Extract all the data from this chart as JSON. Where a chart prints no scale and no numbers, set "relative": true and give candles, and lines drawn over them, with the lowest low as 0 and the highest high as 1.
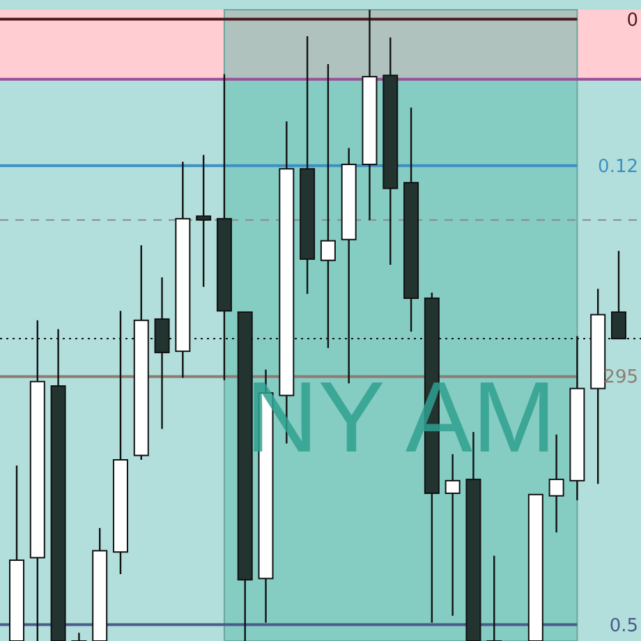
{
  "chart_data": {
    "type": "candlestick",
    "relative": true,
    "annotations": [
      "NY AM",
      "0",
      "0.12",
      "295",
      "0.5"
    ],
    "categories": [
      null,
      null,
      null,
      null,
      null,
      null,
      null,
      null,
      null,
      null,
      null,
      null,
      null,
      null,
      null,
      null,
      null,
      null,
      null,
      null,
      null,
      null,
      null,
      null,
      null,
      null,
      null,
      null,
      null,
      null
    ],
    "ohlc": [
      [
        0,
        0.278,
        0,
        0.128
      ],
      [
        0.132,
        0.508,
        0,
        0.411
      ],
      [
        0.404,
        0.494,
        0,
        0
      ],
      [
        0,
        0.013,
        0,
        0
      ],
      [
        0,
        0.179,
        0,
        0.143
      ],
      [
        0.141,
        0.523,
        0.106,
        0.287
      ],
      [
        0.294,
        0.627,
        0.287,
        0.508
      ],
      [
        0.51,
        0.576,
        0.336,
        0.457
      ],
      [
        0.459,
        0.759,
        0.417,
        0.669
      ],
      [
        0.673,
        0.77,
        0.561,
        0.667
      ],
      [
        0.669,
        0.898,
        0.413,
        0.523
      ],
      [
        0.521,
        0.521,
        0,
        0.097
      ],
      [
        0.099,
        0.43,
        0.029,
        0.393
      ],
      [
        0.389,
        0.823,
        0.313,
        0.748
      ],
      [
        0.748,
        0.958,
        0.55,
        0.605
      ],
      [
        0.603,
        0.914,
        0.464,
        0.634
      ],
      [
        0.636,
        0.781,
        0.408,
        0.755
      ],
      [
        0.755,
        1,
        0.667,
        0.894
      ],
      [
        0.896,
        0.956,
        0.596,
        0.717
      ],
      [
        0.726,
        0.845,
        0.49,
        0.543
      ],
      [
        0.543,
        0.552,
        0.029,
        0.234
      ],
      [
        0.234,
        0.296,
        0.04,
        0.254
      ],
      [
        0.256,
        0.331,
        0,
        0
      ],
      [
        0,
        0.135,
        0,
        0
      ],
      null,
      [
        0,
        0.232,
        0,
        0.232
      ],
      [
        0.23,
        0.327,
        0.172,
        0.256
      ],
      [
        0.254,
        0.483,
        0.223,
        0.4
      ],
      [
        0.4,
        0.558,
        0.249,
        0.517
      ],
      [
        0.521,
        0.618,
        0.479,
        0.479
      ]
    ],
    "ref_lines": [
      {
        "axis": "y",
        "value": 0.985,
        "label": null,
        "color": "#4a1a1f"
      },
      {
        "axis": "y",
        "value": 0.89,
        "label": null,
        "color": "#9c4f9c"
      },
      {
        "axis": "y",
        "value": 0.753,
        "label": null,
        "color": "#3d8fc4"
      },
      {
        "axis": "y",
        "value": 0.667,
        "label": null,
        "color": "#8a8a8a",
        "line_style": "dashed"
      },
      {
        "axis": "y",
        "value": 0.479,
        "label": null,
        "color": "#111111",
        "line_style": "dotted"
      },
      {
        "axis": "y",
        "value": 0.419,
        "label": null,
        "color": "#8d7b73"
      },
      {
        "axis": "y",
        "value": 0.026,
        "label": null,
        "color": "#4a5b8c"
      }
    ],
    "bands": [
      {
        "axis": "y",
        "from": 0.89,
        "to": 1,
        "label": null,
        "color": "#ffcdd2"
      }
    ]
  }
}
